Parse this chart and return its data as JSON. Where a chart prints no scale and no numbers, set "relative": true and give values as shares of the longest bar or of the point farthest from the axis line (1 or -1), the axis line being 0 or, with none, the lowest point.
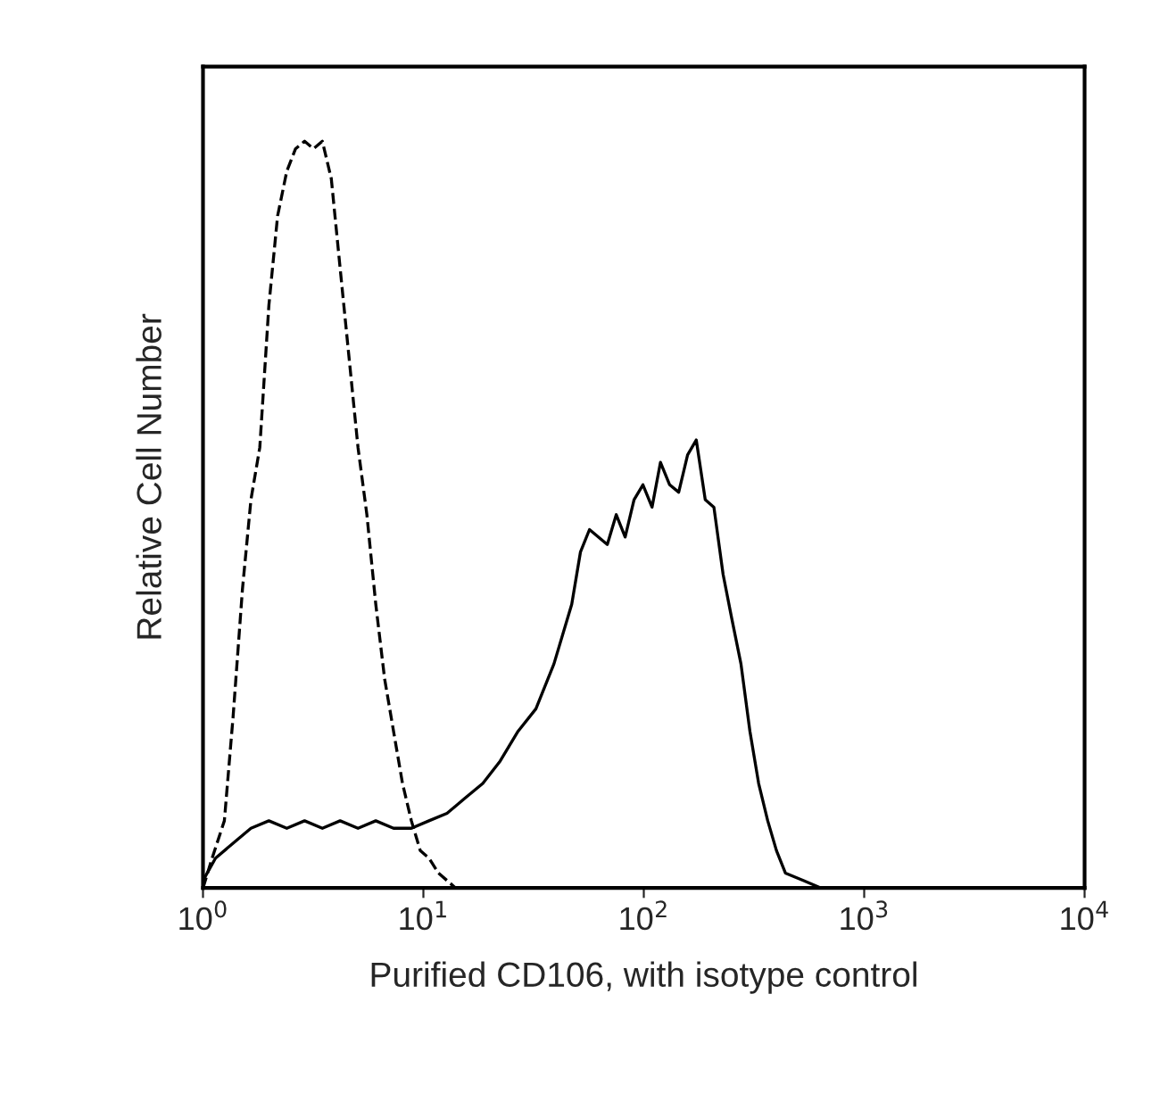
{
  "chart_data": {
    "type": "line",
    "relative": true,
    "log": "x",
    "grid": false,
    "legend": false,
    "tick_labels": "x",
    "xlabel": "Purified CD106, with isotype control",
    "ylabel": "Relative Cell Number",
    "xlim": [
      1,
      10000
    ],
    "xticks": [
      {
        "value": 1,
        "label": "10$^{0}$"
      },
      {
        "value": 10,
        "label": "10$^{1}$"
      },
      {
        "value": 100,
        "label": "10$^{2}$"
      },
      {
        "value": 1000,
        "label": "10$^{3}$"
      },
      {
        "value": 10000,
        "label": "10$^{4}$"
      }
    ],
    "series": [
      {
        "color": "#000000",
        "line_style": "dashed",
        "x": [
          1,
          1.1,
          1.25,
          1.37,
          1.51,
          1.65,
          1.81,
          1.99,
          2.18,
          2.4,
          2.63,
          2.89,
          3.17,
          3.48,
          3.82,
          4.19,
          4.6,
          5.05,
          5.54,
          6.08,
          6.67,
          7.32,
          8.04,
          8.82,
          9.68,
          10.6,
          11.7,
          12.8,
          14.0
        ],
        "values": [
          0,
          0.04,
          0.09,
          0.23,
          0.4,
          0.52,
          0.59,
          0.78,
          0.9,
          0.96,
          0.99,
          1,
          0.99,
          1,
          0.95,
          0.83,
          0.71,
          0.59,
          0.5,
          0.38,
          0.28,
          0.21,
          0.14,
          0.09,
          0.05,
          0.04,
          0.02,
          0.01,
          0
        ]
      },
      {
        "color": "#000000",
        "line_style": "solid",
        "x": [
          1,
          1.14,
          1.37,
          1.65,
          1.99,
          2.4,
          2.89,
          3.48,
          4.19,
          5.05,
          6.08,
          7.32,
          8.82,
          10.6,
          12.8,
          15.4,
          18.6,
          22.3,
          26.9,
          32.4,
          39.1,
          47.1,
          51.6,
          56.7,
          68.3,
          75.0,
          82.3,
          90.3,
          99.1,
          109,
          119,
          131,
          144,
          158,
          173,
          190,
          208,
          229,
          251,
          276,
          303,
          332,
          365,
          400,
          439,
          529,
          637
        ],
        "values": [
          0.01,
          0.04,
          0.06,
          0.08,
          0.09,
          0.08,
          0.09,
          0.08,
          0.09,
          0.08,
          0.09,
          0.08,
          0.08,
          0.09,
          0.1,
          0.12,
          0.14,
          0.17,
          0.21,
          0.24,
          0.3,
          0.38,
          0.45,
          0.48,
          0.46,
          0.5,
          0.47,
          0.52,
          0.54,
          0.51,
          0.57,
          0.54,
          0.53,
          0.58,
          0.6,
          0.52,
          0.51,
          0.42,
          0.36,
          0.3,
          0.21,
          0.14,
          0.09,
          0.05,
          0.02,
          0.01,
          0
        ]
      }
    ]
  }
}
